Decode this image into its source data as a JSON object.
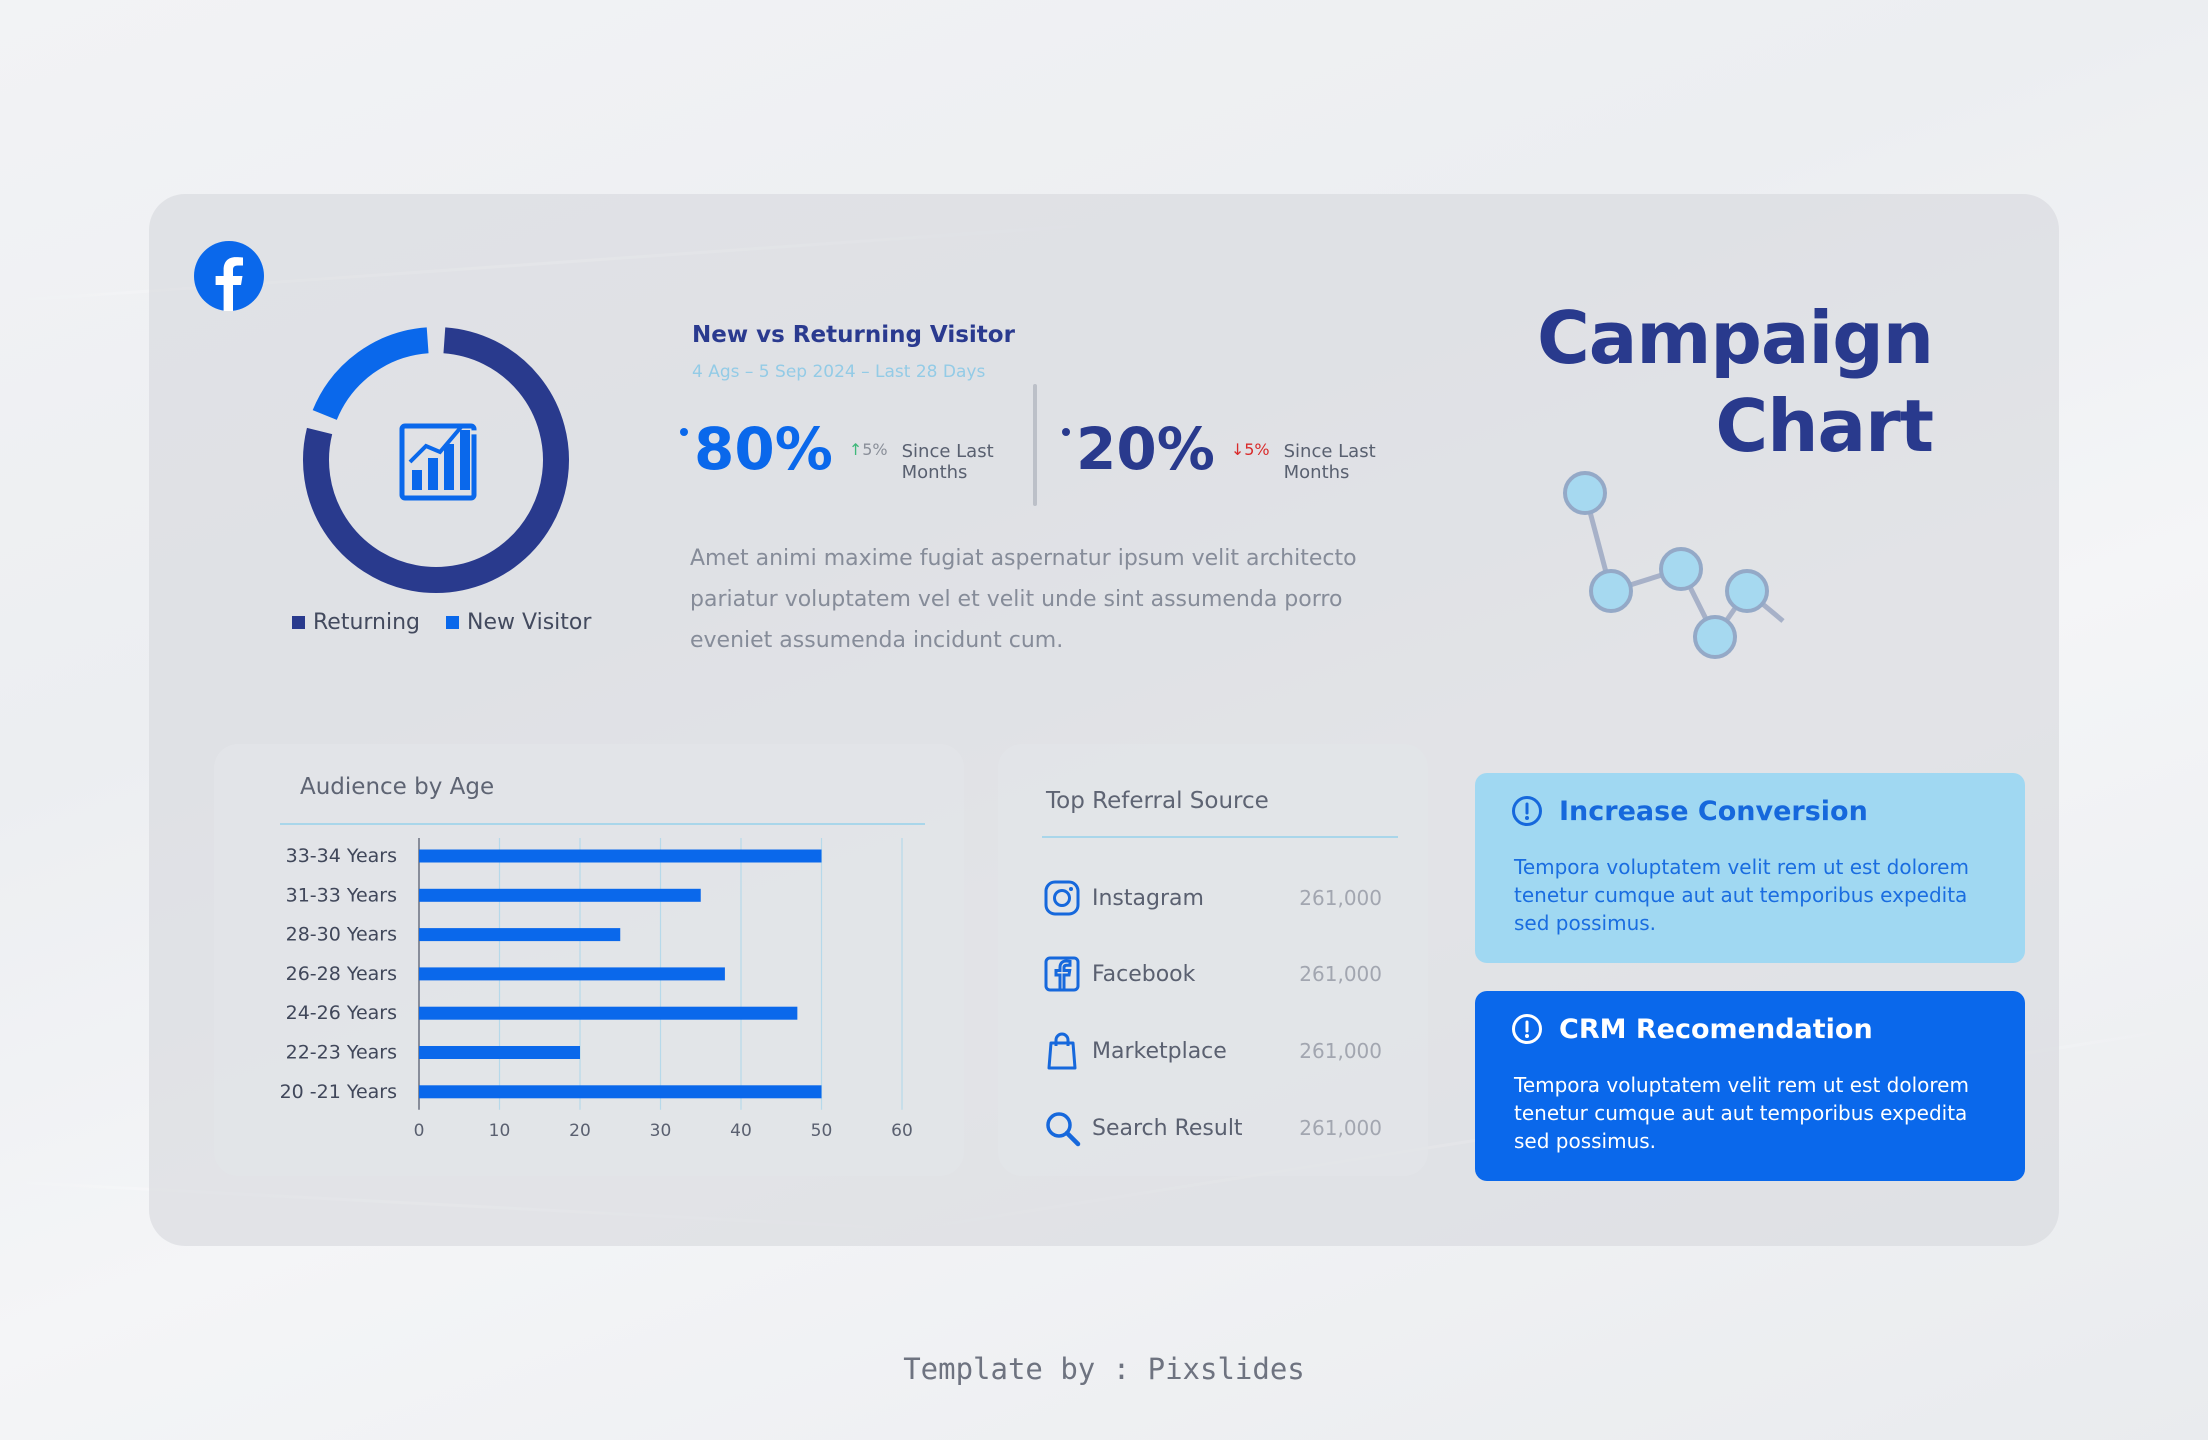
{
  "colors": {
    "returning": "#293a8d",
    "new_visitor": "#0a68eb",
    "bar": "#0a68eb",
    "up": "#3fb87a",
    "down": "#d92b2b",
    "title": "#293a8d"
  },
  "donut": {
    "icon": "bar-chart-icon",
    "legend": [
      {
        "label": "Returning",
        "color": "#293a8d"
      },
      {
        "label": "New Visitor",
        "color": "#0a68eb"
      }
    ]
  },
  "visitor": {
    "title": "New vs Returning  Visitor",
    "date_range": "4 Ags – 5 Sep 2024 – Last 28 Days",
    "stats": [
      {
        "value": "80%",
        "change": "5%",
        "direction": "up",
        "note": "Since Last Months"
      },
      {
        "value": "20%",
        "change": "5%",
        "direction": "down",
        "note": "Since Last Months"
      }
    ],
    "description": "Amet animi maxime fugiat aspernatur ipsum velit architecto pariatur voluptatem vel et velit unde sint assumenda porro eveniet assumenda incidunt cum."
  },
  "campaign": {
    "title_line1": "Campaign",
    "title_line2": "Chart"
  },
  "chart_data": [
    {
      "type": "pie",
      "variant": "donut",
      "categories": [
        "Returning",
        "New Visitor"
      ],
      "values": [
        80,
        20
      ],
      "legend": "bottom"
    },
    {
      "type": "bar",
      "orientation": "horizontal",
      "title": "Audience by Age",
      "categories": [
        "33-34 Years",
        "31-33 Years",
        "28-30 Years",
        "26-28 Years",
        "24-26 Years",
        "22-23 Years",
        "20 -21 Years"
      ],
      "values": [
        50,
        35,
        25,
        38,
        47,
        20,
        50
      ],
      "xlim": [
        0,
        60
      ],
      "xticks": [
        0,
        10,
        20,
        30,
        40,
        50,
        60
      ],
      "grid": "vertical"
    }
  ],
  "referral": {
    "title": "Top Referral Source",
    "items": [
      {
        "name": "Instagram",
        "value": "261,000",
        "icon": "instagram-icon"
      },
      {
        "name": "Facebook",
        "value": "261,000",
        "icon": "facebook-icon"
      },
      {
        "name": "Marketplace",
        "value": "261,000",
        "icon": "shopping-bag-icon"
      },
      {
        "name": "Search Result",
        "value": "261,000",
        "icon": "search-icon"
      }
    ]
  },
  "recommendations": [
    {
      "title": "Increase Conversion",
      "body": "Tempora voluptatem velit rem ut est dolorem tenetur cumque aut aut temporibus expedita sed possimus.",
      "icon": "alert-circle-icon"
    },
    {
      "title": "CRM Recomendation",
      "body": "Tempora voluptatem velit rem ut est dolorem tenetur cumque aut aut temporibus expedita sed possimus.",
      "icon": "alert-circle-icon"
    }
  ],
  "footer": "Template by : Pixslides"
}
